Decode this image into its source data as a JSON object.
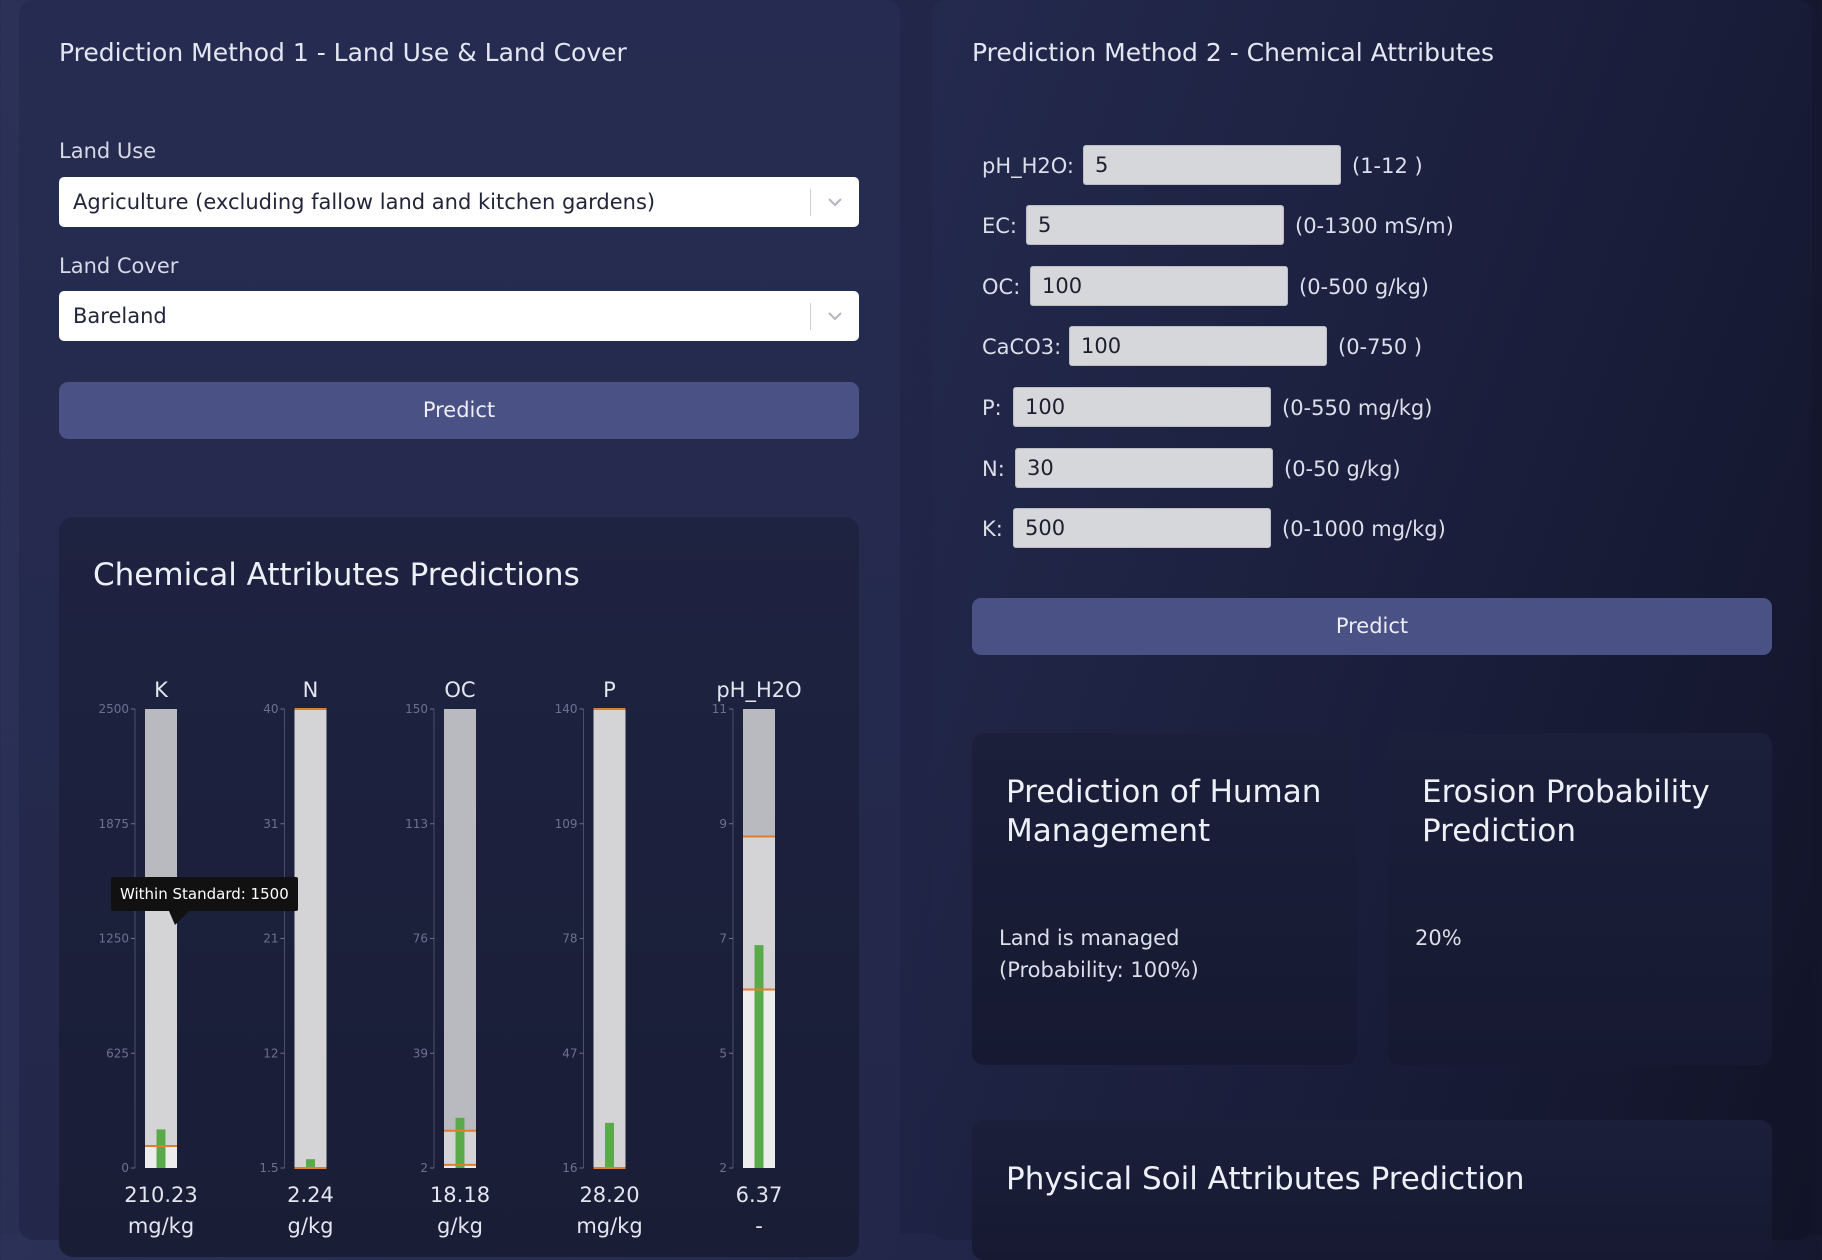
{
  "method1": {
    "title": "Prediction Method 1 - Land Use & Land Cover",
    "land_use": {
      "label": "Land Use",
      "value": "Agriculture (excluding fallow land and kitchen gardens)"
    },
    "land_cover": {
      "label": "Land Cover",
      "value": "Bareland"
    },
    "predict_label": "Predict"
  },
  "predictions": {
    "title": "Chemical Attributes Predictions",
    "tooltip": "Within Standard: 1500"
  },
  "chart_data": {
    "type": "bar",
    "title": "Chemical Attributes Predictions",
    "series": [
      {
        "name": "K",
        "ticks": [
          "2500",
          "1875",
          "1250",
          "625",
          "0"
        ],
        "min": 0,
        "max": 2500,
        "value": 210.23,
        "value_label": "210.23",
        "unit": "mg/kg",
        "standard_lines": [
          1500,
          120
        ]
      },
      {
        "name": "N",
        "ticks": [
          "40",
          "31",
          "21",
          "12",
          "1.5"
        ],
        "min": 1.5,
        "max": 40,
        "value": 2.24,
        "value_label": "2.24",
        "unit": "g/kg",
        "standard_lines": [
          40,
          1.5
        ]
      },
      {
        "name": "OC",
        "ticks": [
          "150",
          "113",
          "76",
          "39",
          "2"
        ],
        "min": 2,
        "max": 150,
        "value": 18.18,
        "value_label": "18.18",
        "unit": "g/kg",
        "standard_lines": [
          14,
          3
        ]
      },
      {
        "name": "P",
        "ticks": [
          "140",
          "109",
          "78",
          "47",
          "16"
        ],
        "min": 16,
        "max": 140,
        "value": 28.2,
        "value_label": "28.20",
        "unit": "mg/kg",
        "standard_lines": [
          140,
          16
        ]
      },
      {
        "name": "pH_H2O",
        "ticks": [
          "11",
          "9",
          "7",
          "5",
          "2"
        ],
        "min": 2,
        "max": 11,
        "value": 6.37,
        "value_label": "6.37",
        "unit": "-",
        "standard_lines": [
          8.5,
          5.5
        ]
      }
    ]
  },
  "method2": {
    "title": "Prediction Method 2 - Chemical Attributes",
    "fields": [
      {
        "label": "pH_H2O:",
        "value": "5",
        "range": "(1-12 )"
      },
      {
        "label": "EC:",
        "value": "5",
        "range": "(0-1300 mS/m)"
      },
      {
        "label": "OC:",
        "value": "100",
        "range": "(0-500 g/kg)"
      },
      {
        "label": "CaCO3:",
        "value": "100",
        "range": "(0-750 )"
      },
      {
        "label": "P:",
        "value": "100",
        "range": "(0-550 mg/kg)"
      },
      {
        "label": "N:",
        "value": "30",
        "range": "(0-50 g/kg)"
      },
      {
        "label": "K:",
        "value": "500",
        "range": "(0-1000 mg/kg)"
      }
    ],
    "predict_label": "Predict"
  },
  "human_management": {
    "title": "Prediction of Human Management",
    "result": "Land is managed (Probability: 100%)"
  },
  "erosion": {
    "title": "Erosion Probability Prediction",
    "result": "20%"
  },
  "physical": {
    "title": "Physical Soil Attributes Prediction"
  },
  "colors": {
    "accent_button": "#4a5184",
    "bar_value": "#5aaa4a",
    "standard_line": "#e07d2f",
    "bar_top": "#b9babf",
    "bar_fill": "#d4d4d6"
  }
}
